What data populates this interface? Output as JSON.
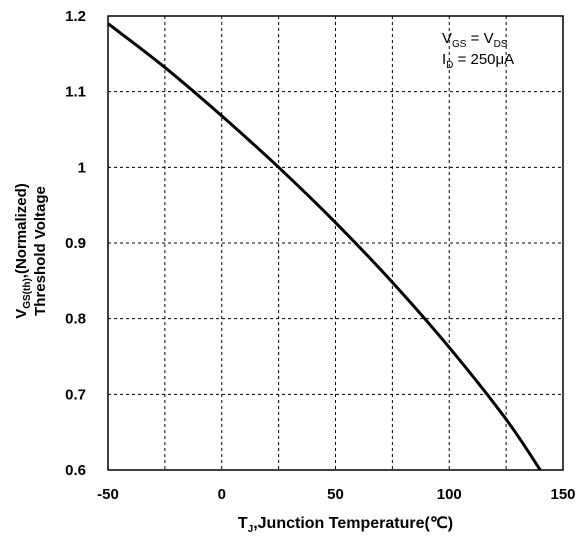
{
  "chart_data": {
    "type": "line",
    "x_axis": {
      "label_main": "T",
      "label_sub": "J",
      "label_rest": ",Junction Temperature(℃)",
      "range": [
        -50,
        150
      ],
      "ticks": [
        -50,
        0,
        50,
        100,
        150
      ],
      "tick_labels": [
        "-50",
        "0",
        "50",
        "100",
        "150"
      ],
      "minor_grid_step": 25
    },
    "y_axis": {
      "label_line1_main": "V",
      "label_line1_sub": "GS(th)",
      "label_line1_rest": ",(Normalized)",
      "label_line2": "Threshold Voltage",
      "range": [
        0.6,
        1.2
      ],
      "ticks": [
        0.6,
        0.7,
        0.8,
        0.9,
        1.0,
        1.1,
        1.2
      ],
      "tick_labels": [
        "0.6",
        "0.7",
        "0.8",
        "0.9",
        "1",
        "1.1",
        "1.2"
      ]
    },
    "grid": true,
    "annotation": {
      "line1": {
        "a": "V",
        "a_sub": "GS",
        "mid": " = V",
        "b_sub": "DS"
      },
      "line2": {
        "a": "I",
        "a_sub": "D",
        "rest": " = 250μA"
      }
    },
    "series": [
      {
        "x": [
          -50,
          -25,
          0,
          25,
          50,
          75,
          100,
          125,
          140
        ],
        "y": [
          1.19,
          1.132,
          1.068,
          1.0,
          0.927,
          0.848,
          0.762,
          0.667,
          0.6
        ]
      }
    ],
    "color": "#000000"
  }
}
